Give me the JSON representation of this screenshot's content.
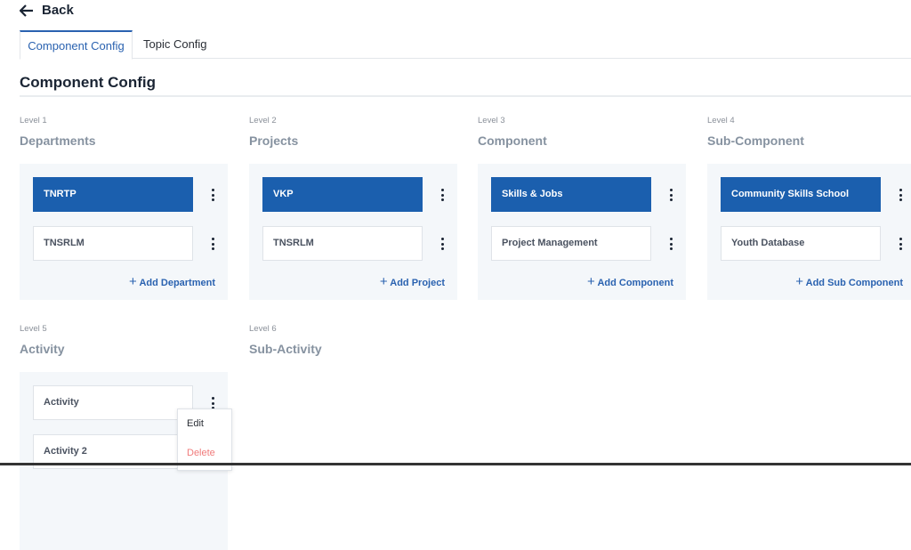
{
  "back": {
    "label": "Back"
  },
  "tabs": [
    {
      "label": "Component Config",
      "active": true
    },
    {
      "label": "Topic Config",
      "active": false
    }
  ],
  "heading": "Component Config",
  "accent": "#1b5fae",
  "levels": [
    {
      "level": "Level 1",
      "title": "Departments",
      "items": [
        {
          "label": "TNRTP",
          "selected": true
        },
        {
          "label": "TNSRLM",
          "selected": false
        }
      ],
      "add": "Add Department"
    },
    {
      "level": "Level 2",
      "title": "Projects",
      "items": [
        {
          "label": "VKP",
          "selected": true
        },
        {
          "label": "TNSRLM",
          "selected": false
        }
      ],
      "add": "Add Project"
    },
    {
      "level": "Level 3",
      "title": "Component",
      "items": [
        {
          "label": "Skills & Jobs",
          "selected": true
        },
        {
          "label": "Project Management",
          "selected": false
        }
      ],
      "add": "Add Component"
    },
    {
      "level": "Level 4",
      "title": "Sub-Component",
      "items": [
        {
          "label": "Community Skills School",
          "selected": true
        },
        {
          "label": "Youth Database",
          "selected": false
        }
      ],
      "add": "Add Sub Component"
    },
    {
      "level": "Level 5",
      "title": "Activity",
      "items": [
        {
          "label": "Activity",
          "selected": false
        },
        {
          "label": "Activity 2",
          "selected": false
        }
      ]
    },
    {
      "level": "Level 6",
      "title": "Sub-Activity",
      "items": []
    }
  ],
  "context_menu": {
    "edit": "Edit",
    "delete": "Delete"
  }
}
